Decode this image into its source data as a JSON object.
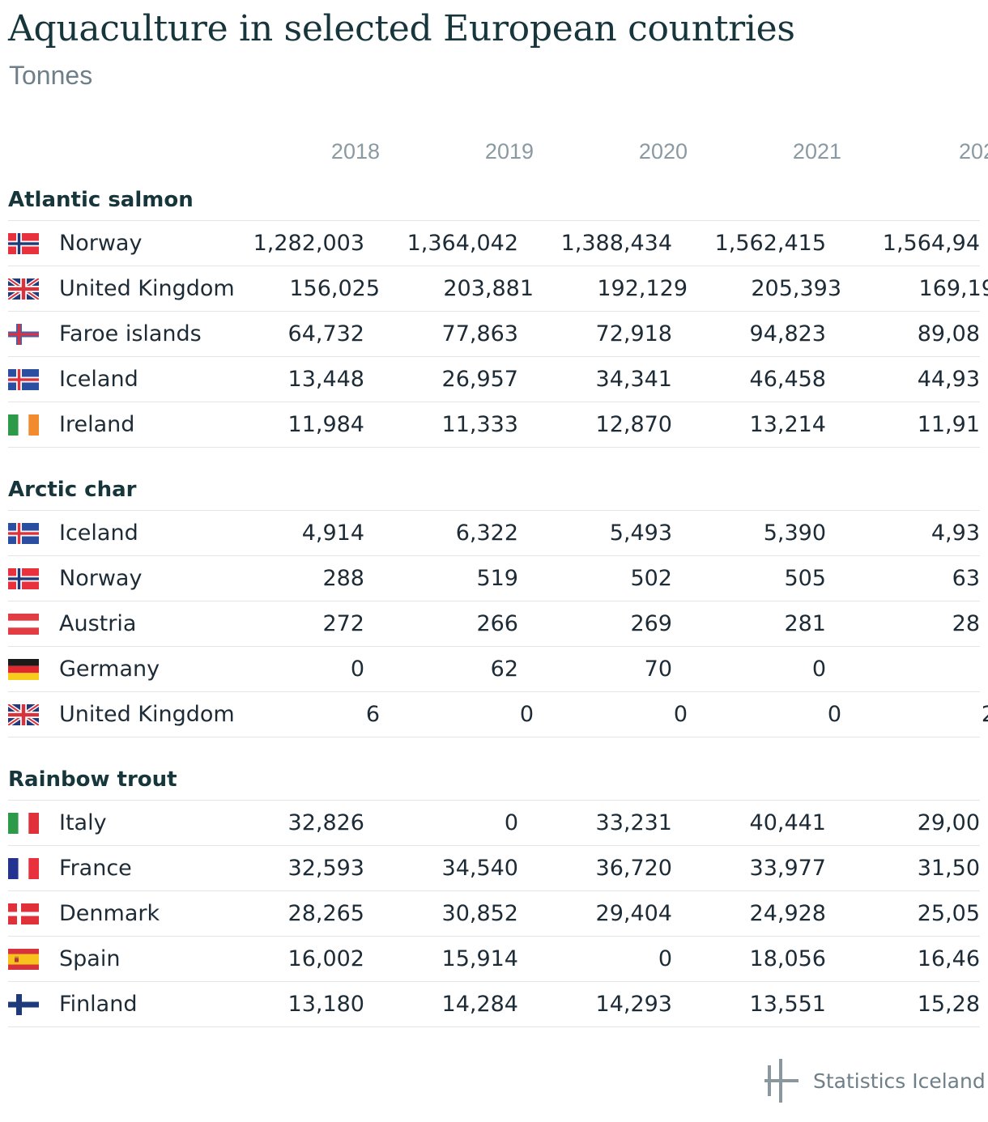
{
  "title": "Aquaculture in selected European countries",
  "subtitle": "Tonnes",
  "footer": {
    "brand": "Statistics Iceland",
    "icon": "statistics-iceland-logo"
  },
  "chart_data": {
    "type": "table",
    "title": "Aquaculture in selected European countries",
    "subtitle": "Tonnes",
    "columns": [
      "2018",
      "2019",
      "2020",
      "2021",
      "202"
    ],
    "groups": [
      {
        "name": "Atlantic salmon",
        "rows": [
          {
            "country": "Norway",
            "flag": "norway-flag",
            "values": [
              "1,282,003",
              "1,364,042",
              "1,388,434",
              "1,562,415",
              "1,564,94"
            ]
          },
          {
            "country": "United Kingdom",
            "flag": "united-kingdom-flag",
            "values": [
              "156,025",
              "203,881",
              "192,129",
              "205,393",
              "169,19"
            ]
          },
          {
            "country": "Faroe islands",
            "flag": "faroe-islands-flag",
            "values": [
              "64,732",
              "77,863",
              "72,918",
              "94,823",
              "89,08"
            ]
          },
          {
            "country": "Iceland",
            "flag": "iceland-flag",
            "values": [
              "13,448",
              "26,957",
              "34,341",
              "46,458",
              "44,93"
            ]
          },
          {
            "country": "Ireland",
            "flag": "ireland-flag",
            "values": [
              "11,984",
              "11,333",
              "12,870",
              "13,214",
              "11,91"
            ]
          }
        ]
      },
      {
        "name": "Arctic char",
        "rows": [
          {
            "country": "Iceland",
            "flag": "iceland-flag",
            "values": [
              "4,914",
              "6,322",
              "5,493",
              "5,390",
              "4,93"
            ]
          },
          {
            "country": "Norway",
            "flag": "norway-flag",
            "values": [
              "288",
              "519",
              "502",
              "505",
              "63"
            ]
          },
          {
            "country": "Austria",
            "flag": "austria-flag",
            "values": [
              "272",
              "266",
              "269",
              "281",
              "28"
            ]
          },
          {
            "country": "Germany",
            "flag": "germany-flag",
            "values": [
              "0",
              "62",
              "70",
              "0",
              ""
            ]
          },
          {
            "country": "United Kingdom",
            "flag": "united-kingdom-flag",
            "values": [
              "6",
              "0",
              "0",
              "0",
              "2"
            ]
          }
        ]
      },
      {
        "name": "Rainbow trout",
        "rows": [
          {
            "country": "Italy",
            "flag": "italy-flag",
            "values": [
              "32,826",
              "0",
              "33,231",
              "40,441",
              "29,00"
            ]
          },
          {
            "country": "France",
            "flag": "france-flag",
            "values": [
              "32,593",
              "34,540",
              "36,720",
              "33,977",
              "31,50"
            ]
          },
          {
            "country": "Denmark",
            "flag": "denmark-flag",
            "values": [
              "28,265",
              "30,852",
              "29,404",
              "24,928",
              "25,05"
            ]
          },
          {
            "country": "Spain",
            "flag": "spain-flag",
            "values": [
              "16,002",
              "15,914",
              "0",
              "18,056",
              "16,46"
            ]
          },
          {
            "country": "Finland",
            "flag": "finland-flag",
            "values": [
              "13,180",
              "14,284",
              "14,293",
              "13,551",
              "15,28"
            ]
          }
        ]
      }
    ]
  }
}
